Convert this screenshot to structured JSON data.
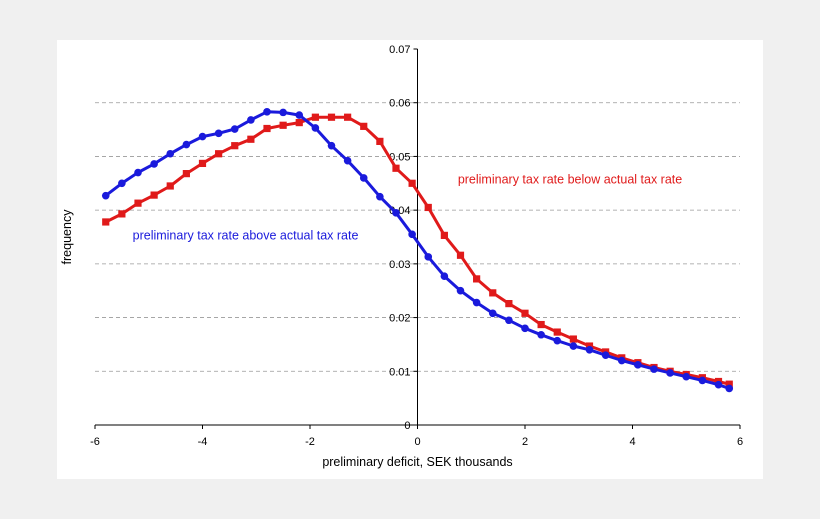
{
  "chart_data": {
    "type": "line",
    "title": "",
    "xlabel": "preliminary deficit, SEK thousands",
    "ylabel": "frequency",
    "xlim": [
      -6,
      6
    ],
    "ylim": [
      0,
      0.07
    ],
    "x_ticks": [
      -6,
      -4,
      -2,
      0,
      2,
      4,
      6
    ],
    "y_ticks": [
      0,
      0.01,
      0.02,
      0.03,
      0.04,
      0.05,
      0.06,
      0.07
    ],
    "y_tick_labels": [
      "0",
      "0.01",
      "0.02",
      "0.03",
      "0.04",
      "0.05",
      "0.06",
      "0.07"
    ],
    "x_tick_labels": [
      "-6",
      "-4",
      "-2",
      "0",
      "2",
      "4",
      "6"
    ],
    "grid": "horizontal dashed",
    "series": [
      {
        "color": "#1a1adc",
        "marker": "circle",
        "x": [
          -5.8,
          -5.5,
          -5.2,
          -4.9,
          -4.6,
          -4.3,
          -4.0,
          -3.7,
          -3.4,
          -3.1,
          -2.8,
          -2.5,
          -2.2,
          -1.9,
          -1.6,
          -1.3,
          -1.0,
          -0.7,
          -0.4,
          -0.1,
          0.2,
          0.5,
          0.8,
          1.1,
          1.4,
          1.7,
          2.0,
          2.3,
          2.6,
          2.9,
          3.2,
          3.5,
          3.8,
          4.1,
          4.4,
          4.7,
          5.0,
          5.3,
          5.6,
          5.8
        ],
        "values": [
          0.0427,
          0.045,
          0.047,
          0.0486,
          0.0505,
          0.0522,
          0.0537,
          0.0543,
          0.0551,
          0.0568,
          0.0583,
          0.0582,
          0.0577,
          0.0553,
          0.052,
          0.0492,
          0.046,
          0.0425,
          0.0395,
          0.0355,
          0.0313,
          0.0277,
          0.025,
          0.0228,
          0.0208,
          0.0195,
          0.018,
          0.0168,
          0.0157,
          0.0147,
          0.014,
          0.013,
          0.012,
          0.0112,
          0.0104,
          0.0097,
          0.009,
          0.0083,
          0.0075,
          0.0068
        ]
      },
      {
        "color": "#e01a1a",
        "marker": "square",
        "x": [
          -5.8,
          -5.5,
          -5.2,
          -4.9,
          -4.6,
          -4.3,
          -4.0,
          -3.7,
          -3.4,
          -3.1,
          -2.8,
          -2.5,
          -2.2,
          -1.9,
          -1.6,
          -1.3,
          -1.0,
          -0.7,
          -0.4,
          -0.1,
          0.2,
          0.5,
          0.8,
          1.1,
          1.4,
          1.7,
          2.0,
          2.3,
          2.6,
          2.9,
          3.2,
          3.5,
          3.8,
          4.1,
          4.4,
          4.7,
          5.0,
          5.3,
          5.6,
          5.8
        ],
        "values": [
          0.0378,
          0.0393,
          0.0413,
          0.0428,
          0.0445,
          0.0468,
          0.0487,
          0.0505,
          0.052,
          0.0532,
          0.0552,
          0.0558,
          0.0563,
          0.0573,
          0.0573,
          0.0573,
          0.0556,
          0.0528,
          0.0478,
          0.045,
          0.0405,
          0.0353,
          0.0316,
          0.0272,
          0.0246,
          0.0226,
          0.0208,
          0.0187,
          0.0173,
          0.016,
          0.0147,
          0.0136,
          0.0125,
          0.0116,
          0.0107,
          0.01,
          0.0094,
          0.0088,
          0.0081,
          0.0076
        ]
      }
    ],
    "annotations": [
      {
        "text": "preliminary tax rate below actual tax rate",
        "color": "#e01a1a",
        "x": 0.75,
        "y": 0.045
      },
      {
        "text": "preliminary tax rate above actual tax rate",
        "color": "#1a1adc",
        "x": -5.3,
        "y": 0.0345
      }
    ]
  }
}
